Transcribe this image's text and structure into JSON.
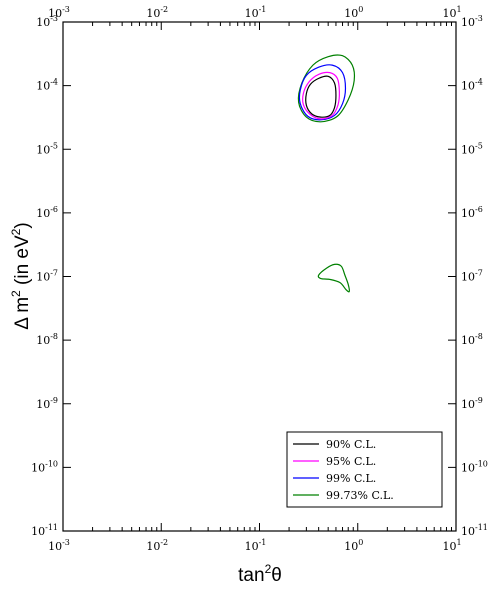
{
  "chart_data": {
    "type": "line",
    "title": "",
    "xlabel": {
      "base": "tan",
      "sup": "2",
      "tail": "θ"
    },
    "ylabel": {
      "head": "Δ m",
      "sup1": "2",
      "mid": " (in eV",
      "sup2": "2",
      "tail": ")"
    },
    "xscale": "log",
    "yscale": "log",
    "xlim": [
      0.001,
      10
    ],
    "ylim": [
      1e-11,
      0.001
    ],
    "grid": false,
    "legend_position": "bottom-right",
    "x_ticks": [
      {
        "base": "10",
        "exp": "-3",
        "value": 0.001
      },
      {
        "base": "10",
        "exp": "-2",
        "value": 0.01
      },
      {
        "base": "10",
        "exp": "-1",
        "value": 0.1
      },
      {
        "base": "10",
        "exp": "0",
        "value": 1
      },
      {
        "base": "10",
        "exp": "1",
        "value": 10
      }
    ],
    "y_ticks": [
      {
        "base": "10",
        "exp": "-11",
        "value": 1e-11
      },
      {
        "base": "10",
        "exp": "-10",
        "value": 1e-10
      },
      {
        "base": "10",
        "exp": "-9",
        "value": 1e-09
      },
      {
        "base": "10",
        "exp": "-8",
        "value": 1e-08
      },
      {
        "base": "10",
        "exp": "-7",
        "value": 1e-07
      },
      {
        "base": "10",
        "exp": "-6",
        "value": 1e-06
      },
      {
        "base": "10",
        "exp": "-5",
        "value": 1e-05
      },
      {
        "base": "10",
        "exp": "-4",
        "value": 0.0001
      },
      {
        "base": "10",
        "exp": "-3",
        "value": 0.001
      }
    ],
    "series": [
      {
        "name": "90% C.L.",
        "color": "#000000",
        "contours": [
          [
            [
              0.3,
              4.9e-05
            ],
            [
              0.34,
              3.6e-05
            ],
            [
              0.42,
              3.2e-05
            ],
            [
              0.52,
              3.4e-05
            ],
            [
              0.58,
              4.5e-05
            ],
            [
              0.6,
              7e-05
            ],
            [
              0.58,
              0.00011
            ],
            [
              0.5,
              0.00014
            ],
            [
              0.4,
              0.00013
            ],
            [
              0.33,
              0.000105
            ],
            [
              0.3,
              7.5e-05
            ]
          ]
        ]
      },
      {
        "name": "95% C.L.",
        "color": "#ff00ff",
        "contours": [
          [
            [
              0.28,
              5e-05
            ],
            [
              0.33,
              3.5e-05
            ],
            [
              0.42,
              3e-05
            ],
            [
              0.55,
              3.4e-05
            ],
            [
              0.63,
              5e-05
            ],
            [
              0.65,
              8e-05
            ],
            [
              0.62,
              0.00013
            ],
            [
              0.52,
              0.00016
            ],
            [
              0.4,
              0.00015
            ],
            [
              0.32,
              0.000115
            ],
            [
              0.28,
              7.6e-05
            ]
          ]
        ]
      },
      {
        "name": "99% C.L.",
        "color": "#0000ff",
        "contours": [
          [
            [
              0.26,
              5.2e-05
            ],
            [
              0.31,
              3.3e-05
            ],
            [
              0.42,
              2.9e-05
            ],
            [
              0.58,
              3.4e-05
            ],
            [
              0.7,
              5.2e-05
            ],
            [
              0.75,
              9e-05
            ],
            [
              0.7,
              0.00016
            ],
            [
              0.55,
              0.00021
            ],
            [
              0.4,
              0.000195
            ],
            [
              0.3,
              0.000145
            ],
            [
              0.26,
              8.5e-05
            ]
          ]
        ]
      },
      {
        "name": "99.73% C.L.",
        "color": "#008000",
        "contours": [
          [
            [
              0.25,
              5.5e-05
            ],
            [
              0.3,
              3.2e-05
            ],
            [
              0.42,
              2.7e-05
            ],
            [
              0.62,
              3.3e-05
            ],
            [
              0.8,
              6e-05
            ],
            [
              0.92,
              0.00012
            ],
            [
              0.88,
              0.00021
            ],
            [
              0.7,
              0.000295
            ],
            [
              0.5,
              0.000285
            ],
            [
              0.35,
              0.00021
            ],
            [
              0.27,
              0.00011
            ]
          ],
          [
            [
              0.4,
              1.05e-07
            ],
            [
              0.48,
              1.35e-07
            ],
            [
              0.58,
              1.55e-07
            ],
            [
              0.68,
              1.45e-07
            ],
            [
              0.74,
              1.05e-07
            ],
            [
              0.8,
              7.5e-08
            ],
            [
              0.82,
              5.8e-08
            ],
            [
              0.76,
              6.2e-08
            ],
            [
              0.66,
              8e-08
            ],
            [
              0.52,
              9e-08
            ],
            [
              0.42,
              9.3e-08
            ]
          ]
        ]
      }
    ]
  }
}
